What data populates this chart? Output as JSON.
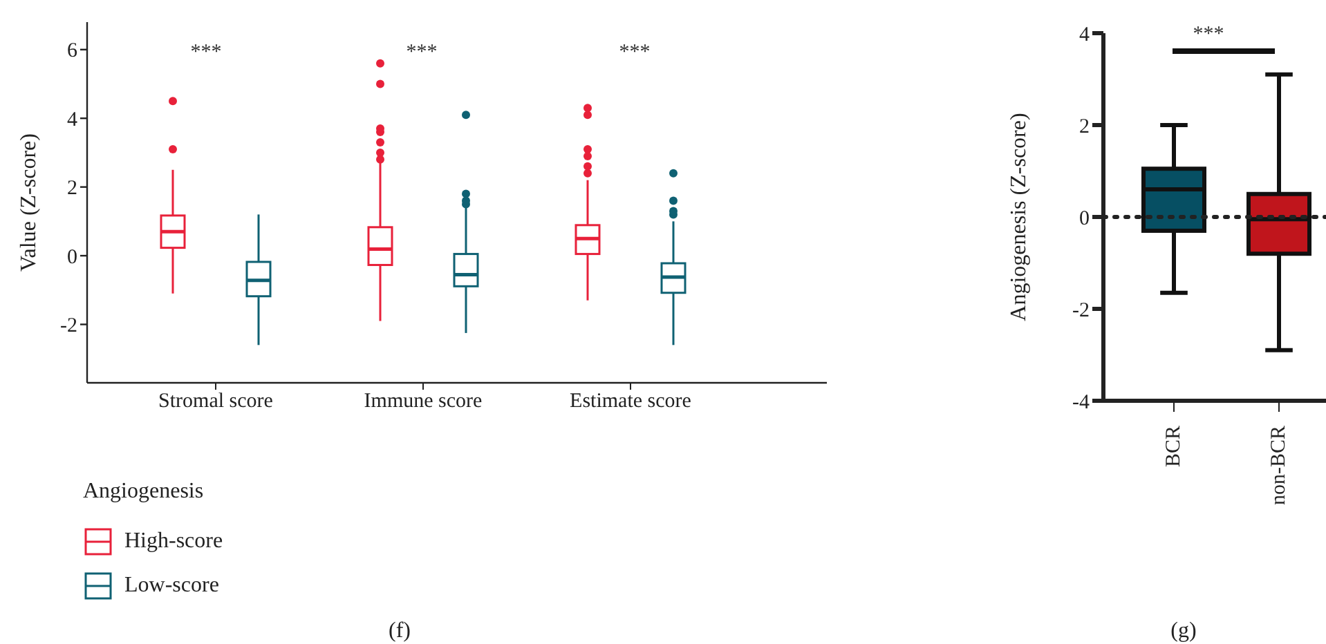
{
  "chart_data": [
    {
      "type": "box",
      "categories": [
        "Stromal score",
        "Immune score",
        "Estimate score"
      ],
      "ylabel": "Value (Z-score)",
      "ylim": [
        -3.7,
        6.8
      ],
      "yticks": [
        -2,
        0,
        2,
        4,
        6
      ],
      "legend": "bottom left",
      "legend_title": "Angiogenesis",
      "series": [
        {
          "name": "High-score",
          "color": "#e8213a",
          "boxes": [
            {
              "low": -1.1,
              "q1": 0.23,
              "median": 0.7,
              "q3": 1.17,
              "high": 2.5,
              "outliers": [
                3.1,
                4.5
              ]
            },
            {
              "low": -1.9,
              "q1": -0.27,
              "median": 0.19,
              "q3": 0.83,
              "high": 2.7,
              "outliers": [
                2.8,
                3.0,
                3.3,
                3.6,
                3.7,
                5.0,
                5.6
              ]
            },
            {
              "low": -1.3,
              "q1": 0.05,
              "median": 0.5,
              "q3": 0.89,
              "high": 2.2,
              "outliers": [
                2.4,
                2.6,
                2.9,
                3.1,
                4.1,
                4.3
              ]
            }
          ]
        },
        {
          "name": "Low-score",
          "color": "#0f6173",
          "boxes": [
            {
              "low": -2.6,
              "q1": -1.18,
              "median": -0.72,
              "q3": -0.18,
              "high": 1.2
            },
            {
              "low": -2.25,
              "q1": -0.89,
              "median": -0.55,
              "q3": 0.05,
              "high": 1.4,
              "outliers": [
                1.5,
                1.6,
                1.8,
                4.1
              ]
            },
            {
              "low": -2.6,
              "q1": -1.08,
              "median": -0.62,
              "q3": -0.22,
              "high": 1.0,
              "outliers": [
                1.2,
                1.3,
                1.6,
                2.4
              ]
            }
          ]
        }
      ],
      "annotations": [
        "***",
        "***",
        "***",
        "(f)"
      ]
    },
    {
      "type": "box",
      "categories": [
        "BCR",
        "non-BCR"
      ],
      "ylabel": "Angiogenesis (Z-score)",
      "ylim": [
        -4,
        4
      ],
      "yticks": [
        -4,
        -2,
        0,
        2,
        4
      ],
      "colors": [
        "#064f63",
        "#c0151c"
      ],
      "boxes": [
        {
          "low": -1.65,
          "q1": -0.3,
          "median": 0.6,
          "q3": 1.05,
          "high": 2.0
        },
        {
          "low": -2.9,
          "q1": -0.8,
          "median": -0.05,
          "q3": 0.5,
          "high": 3.1
        }
      ],
      "ref_lines": [
        {
          "axis": "y",
          "value": 0,
          "line_style": "dotted"
        }
      ],
      "annotations": [
        "***",
        "(g)"
      ]
    }
  ]
}
